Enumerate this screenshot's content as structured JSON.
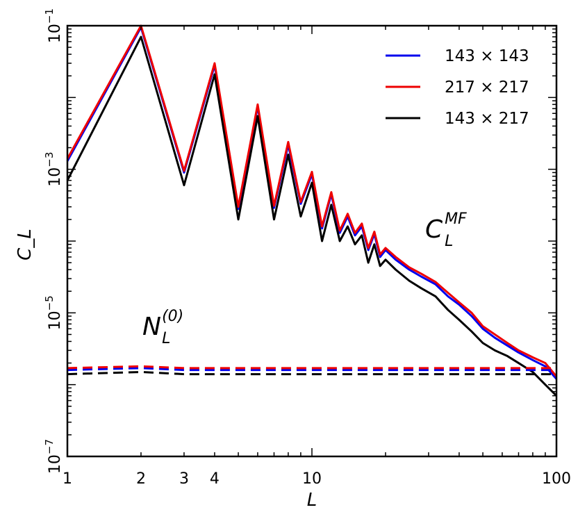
{
  "chart_data": {
    "type": "line",
    "title": "",
    "xlabel": "L",
    "ylabel": "C_L",
    "xscale": "log",
    "yscale": "log",
    "xlim": [
      1,
      100
    ],
    "ylim": [
      1e-07,
      0.1
    ],
    "x_ticks": [
      {
        "value": 1,
        "label": "1"
      },
      {
        "value": 2,
        "label": "2"
      },
      {
        "value": 3,
        "label": "3"
      },
      {
        "value": 4,
        "label": "4"
      },
      {
        "value": 10,
        "label": "10"
      },
      {
        "value": 100,
        "label": "100"
      }
    ],
    "y_ticks": [
      {
        "value": 1e-07,
        "base": "10",
        "exp": "−7"
      },
      {
        "value": 1e-05,
        "base": "10",
        "exp": "−5"
      },
      {
        "value": 0.001,
        "base": "10",
        "exp": "−3"
      },
      {
        "value": 0.1,
        "base": "10",
        "exp": "−1"
      }
    ],
    "grid": false,
    "legend_position": "top-right",
    "annotations": [
      {
        "id": "mf",
        "main": "C",
        "sub": "L",
        "sup": "MF"
      },
      {
        "id": "n0",
        "main": "N",
        "sub": "L",
        "sup": "(0)"
      }
    ],
    "series": [
      {
        "name": "143 × 143",
        "color": "#0000ee",
        "style": "solid",
        "x": [
          1,
          2,
          3,
          4,
          5,
          6,
          7,
          8,
          9,
          10,
          11,
          12,
          13,
          14,
          15,
          16,
          17,
          18,
          19,
          20,
          22,
          25,
          28,
          32,
          36,
          40,
          45,
          50,
          56,
          63,
          70,
          80,
          90,
          100
        ],
        "y": [
          0.0013,
          0.095,
          0.0009,
          0.028,
          0.00028,
          0.0075,
          0.00029,
          0.0022,
          0.00033,
          0.00085,
          0.00015,
          0.00045,
          0.00013,
          0.00022,
          0.00012,
          0.00016,
          7.5e-05,
          0.000125,
          6e-05,
          7.5e-05,
          5.5e-05,
          4e-05,
          3.2e-05,
          2.5e-05,
          1.7e-05,
          1.3e-05,
          9e-06,
          6e-06,
          4.5e-06,
          3.5e-06,
          2.8e-06,
          2.2e-06,
          1.8e-06,
          1.2e-06
        ]
      },
      {
        "name": "217 × 217",
        "color": "#ee0000",
        "style": "solid",
        "x": [
          1,
          2,
          3,
          4,
          5,
          6,
          7,
          8,
          9,
          10,
          11,
          12,
          13,
          14,
          15,
          16,
          17,
          18,
          19,
          20,
          22,
          25,
          28,
          32,
          36,
          40,
          45,
          50,
          56,
          63,
          70,
          80,
          90,
          100
        ],
        "y": [
          0.0014,
          0.1,
          0.00095,
          0.03,
          0.0003,
          0.008,
          0.00031,
          0.0024,
          0.00035,
          0.00092,
          0.00016,
          0.00048,
          0.00014,
          0.00024,
          0.00013,
          0.000175,
          8e-05,
          0.000135,
          6.5e-05,
          8e-05,
          6e-05,
          4.3e-05,
          3.5e-05,
          2.7e-05,
          1.9e-05,
          1.4e-05,
          1e-05,
          6.5e-06,
          5e-06,
          3.8e-06,
          3e-06,
          2.4e-06,
          2e-06,
          1.3e-06
        ]
      },
      {
        "name": "143 × 217",
        "color": "#000000",
        "style": "solid",
        "x": [
          1,
          2,
          3,
          4,
          5,
          6,
          7,
          8,
          9,
          10,
          11,
          12,
          13,
          14,
          15,
          16,
          17,
          18,
          19,
          20,
          22,
          25,
          28,
          32,
          36,
          40,
          45,
          50,
          56,
          63,
          70,
          80,
          90,
          100
        ],
        "y": [
          0.0007,
          0.07,
          0.0006,
          0.021,
          0.0002,
          0.0055,
          0.0002,
          0.0016,
          0.00022,
          0.00065,
          0.0001,
          0.00032,
          0.0001,
          0.00016,
          9e-05,
          0.00012,
          5e-05,
          9e-05,
          4.5e-05,
          5.5e-05,
          4e-05,
          2.8e-05,
          2.2e-05,
          1.7e-05,
          1.1e-05,
          8e-06,
          5.5e-06,
          3.8e-06,
          3e-06,
          2.5e-06,
          2e-06,
          1.5e-06,
          1e-06,
          7e-07
        ]
      },
      {
        "name": "",
        "color": "#0000ee",
        "style": "dashed",
        "x": [
          1,
          2,
          3,
          5,
          10,
          20,
          40,
          70,
          100
        ],
        "y": [
          1.6e-06,
          1.7e-06,
          1.6e-06,
          1.6e-06,
          1.6e-06,
          1.6e-06,
          1.6e-06,
          1.6e-06,
          1.6e-06
        ]
      },
      {
        "name": "",
        "color": "#ee0000",
        "style": "dashed",
        "x": [
          1,
          2,
          3,
          5,
          10,
          20,
          40,
          70,
          100
        ],
        "y": [
          1.7e-06,
          1.8e-06,
          1.7e-06,
          1.7e-06,
          1.7e-06,
          1.7e-06,
          1.7e-06,
          1.7e-06,
          1.7e-06
        ]
      },
      {
        "name": "",
        "color": "#000000",
        "style": "dashed",
        "x": [
          1,
          2,
          3,
          5,
          10,
          20,
          40,
          70,
          100
        ],
        "y": [
          1.4e-06,
          1.5e-06,
          1.4e-06,
          1.4e-06,
          1.4e-06,
          1.4e-06,
          1.4e-06,
          1.4e-06,
          1.4e-06
        ]
      }
    ]
  }
}
